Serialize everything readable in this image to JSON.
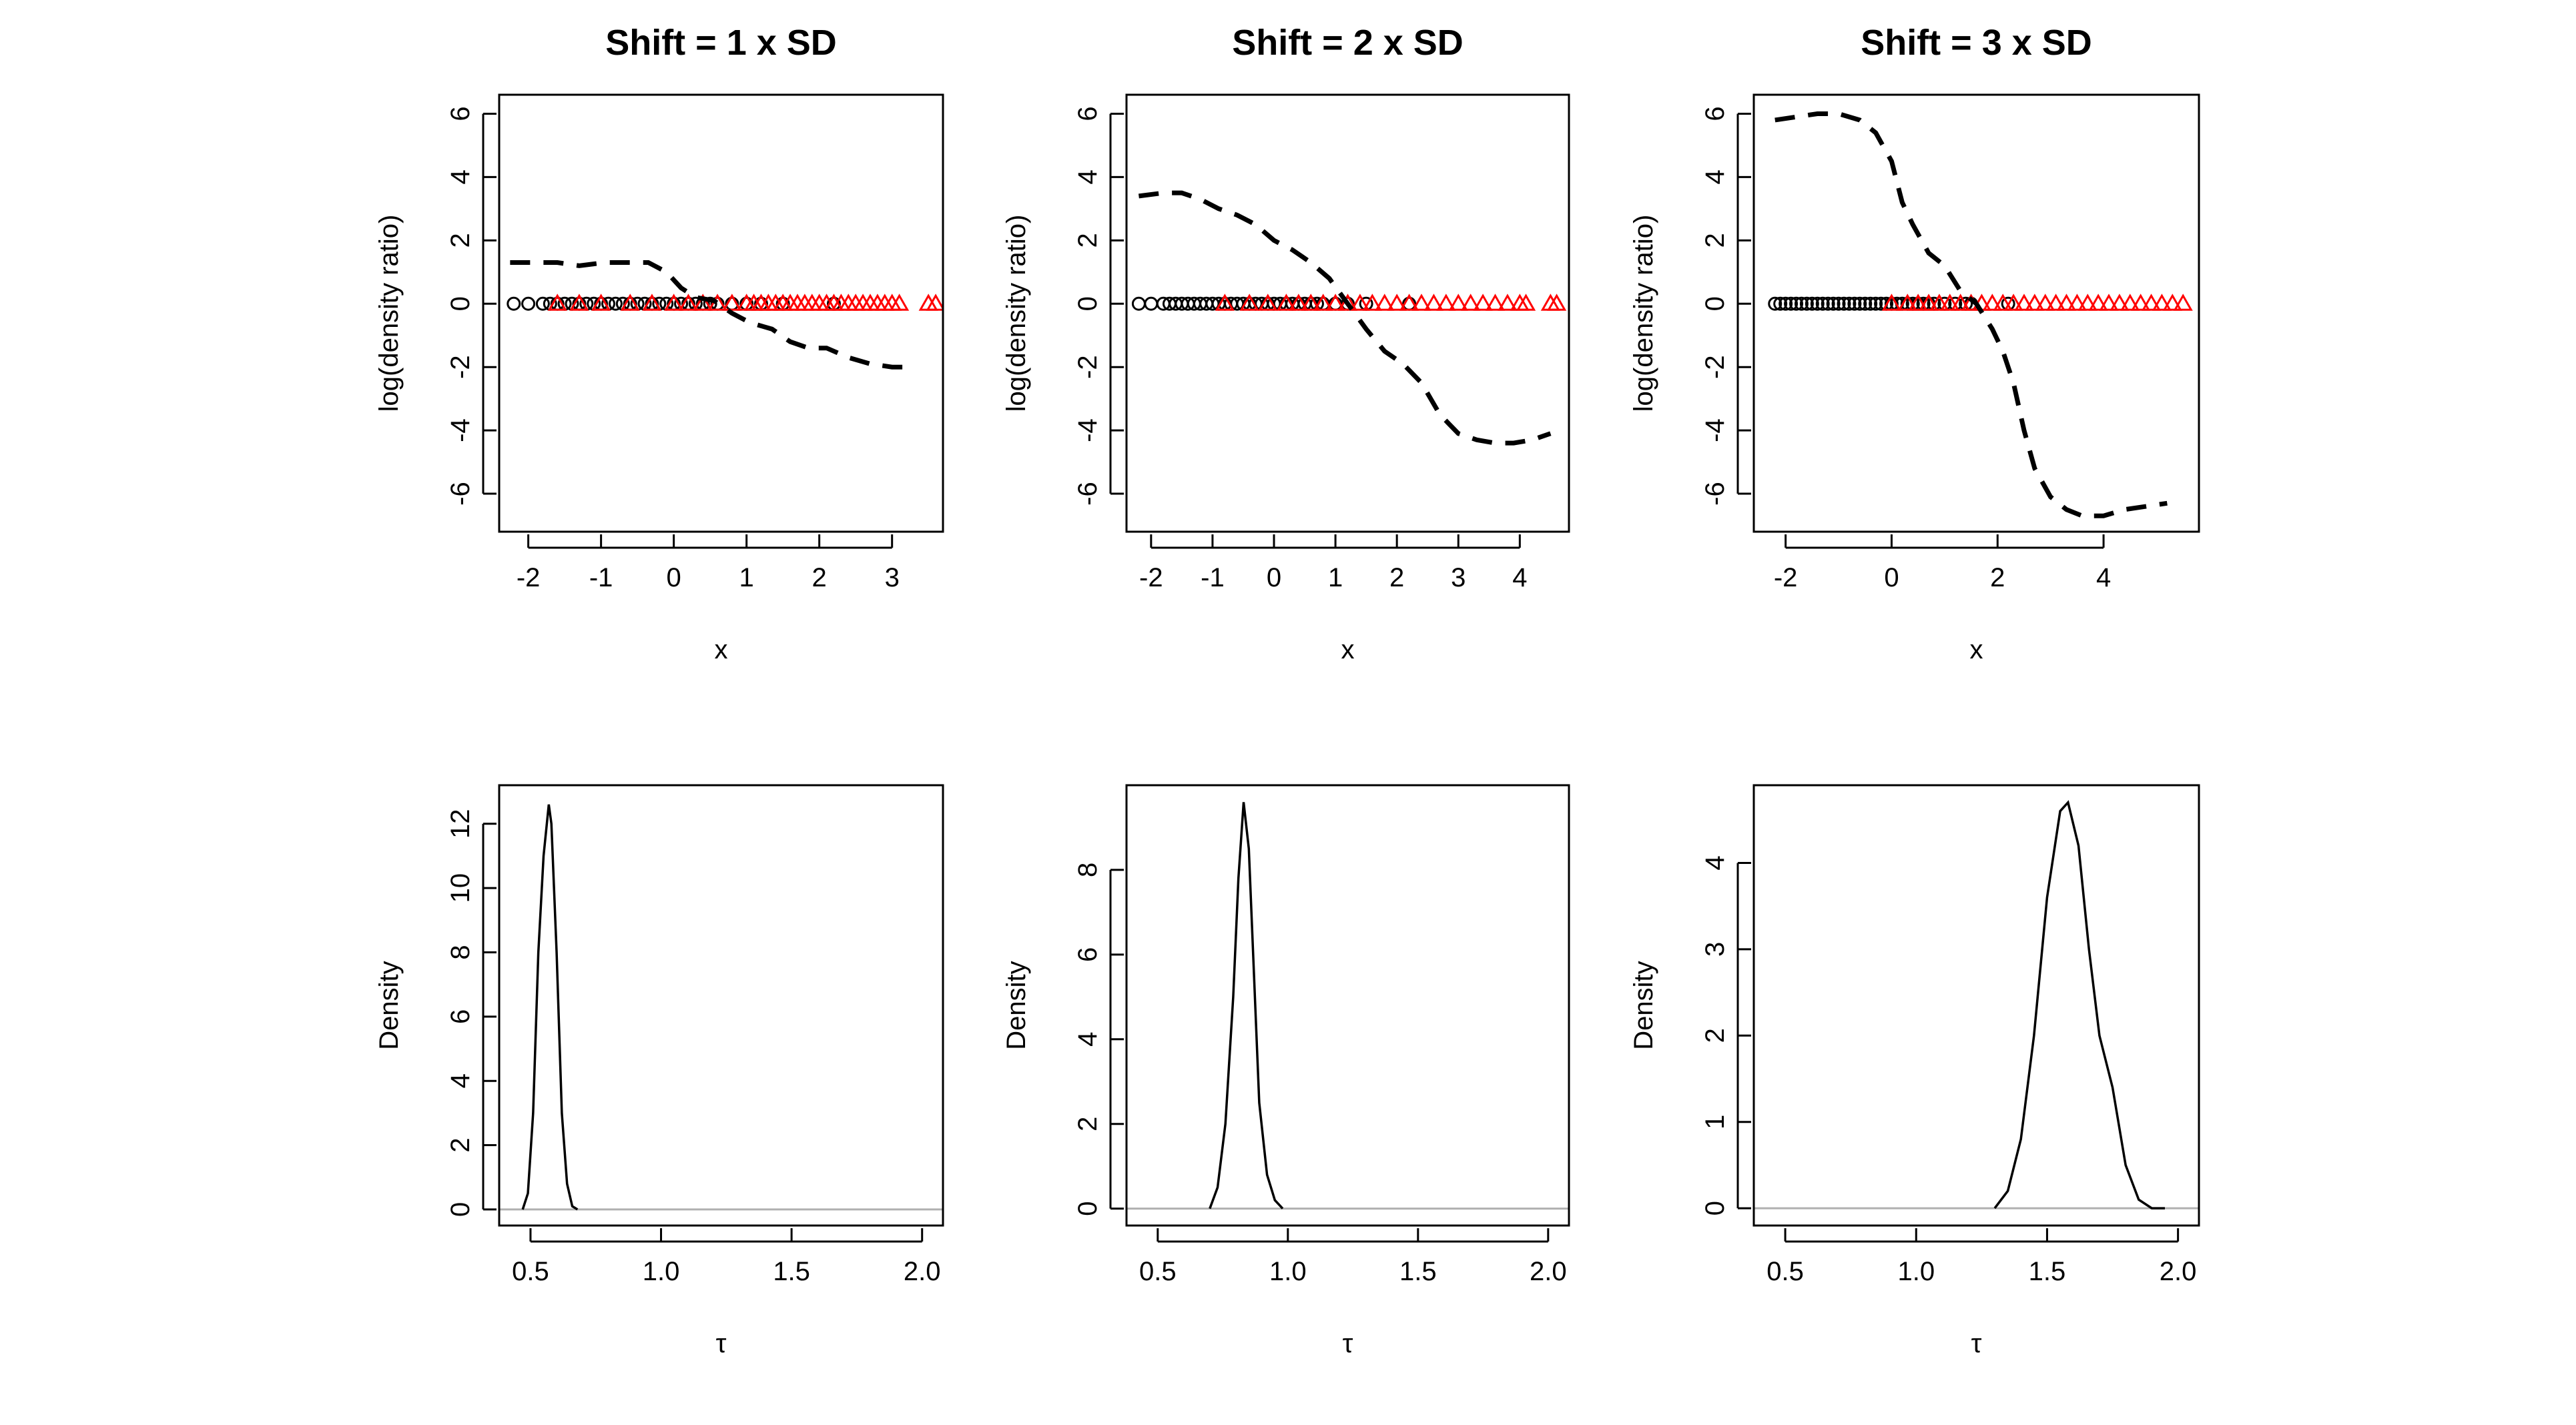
{
  "chart_data": [
    {
      "id": "top1",
      "type": "line",
      "title": "Shift = 1 x SD",
      "xlabel": "x",
      "ylabel": "log(density ratio)",
      "xlim": [
        -2.4,
        3.7
      ],
      "ylim": [
        -7.2,
        6.6
      ],
      "xticks": [
        -2,
        -1,
        0,
        1,
        2,
        3
      ],
      "yticks": [
        -6,
        -4,
        -2,
        0,
        2,
        4,
        6
      ],
      "line_style": "dashed",
      "line": {
        "x": [
          -2.25,
          -1.9,
          -1.6,
          -1.3,
          -0.95,
          -0.6,
          -0.35,
          -0.1,
          0.1,
          0.3,
          0.55,
          0.8,
          1.05,
          1.35,
          1.6,
          1.85,
          2.1,
          2.4,
          2.7,
          3.0,
          3.3
        ],
        "y": [
          1.3,
          1.3,
          1.3,
          1.2,
          1.3,
          1.3,
          1.3,
          1.0,
          0.5,
          0.2,
          0.1,
          -0.3,
          -0.6,
          -0.8,
          -1.2,
          -1.4,
          -1.4,
          -1.7,
          -1.9,
          -2.0,
          -2.0
        ]
      },
      "points_black_circles": [
        -2.2,
        -2.0,
        -1.8,
        -1.7,
        -1.6,
        -1.5,
        -1.4,
        -1.3,
        -1.2,
        -1.1,
        -1.0,
        -0.9,
        -0.8,
        -0.7,
        -0.6,
        -0.5,
        -0.4,
        -0.3,
        -0.2,
        -0.1,
        0.0,
        0.1,
        0.2,
        0.3,
        0.4,
        0.5,
        0.6,
        0.8,
        1.0,
        1.2,
        1.5,
        2.2
      ],
      "points_red_triangles": [
        -1.6,
        -1.3,
        -1.0,
        -0.6,
        -0.3,
        0.0,
        0.2,
        0.4,
        0.6,
        0.8,
        1.0,
        1.1,
        1.2,
        1.3,
        1.4,
        1.5,
        1.6,
        1.7,
        1.8,
        1.9,
        2.0,
        2.1,
        2.2,
        2.3,
        2.4,
        2.5,
        2.6,
        2.7,
        2.8,
        2.9,
        3.0,
        3.1,
        3.5,
        3.6
      ],
      "colors": {
        "black": "#000000",
        "red": "#ff0000"
      }
    },
    {
      "id": "top2",
      "type": "line",
      "title": "Shift = 2 x SD",
      "xlabel": "x",
      "ylabel": "log(density ratio)",
      "xlim": [
        -2.4,
        4.8
      ],
      "ylim": [
        -7.2,
        6.6
      ],
      "xticks": [
        -2,
        -1,
        0,
        1,
        2,
        3,
        4
      ],
      "yticks": [
        -6,
        -4,
        -2,
        0,
        2,
        4,
        6
      ],
      "line_style": "dashed",
      "line": {
        "x": [
          -2.2,
          -1.8,
          -1.5,
          -1.2,
          -0.9,
          -0.6,
          -0.3,
          0.0,
          0.3,
          0.6,
          0.9,
          1.2,
          1.5,
          1.8,
          2.1,
          2.4,
          2.7,
          3.0,
          3.3,
          3.6,
          3.9,
          4.2,
          4.5
        ],
        "y": [
          3.4,
          3.5,
          3.5,
          3.3,
          3.0,
          2.8,
          2.5,
          2.0,
          1.7,
          1.3,
          0.8,
          0.0,
          -0.8,
          -1.5,
          -1.9,
          -2.5,
          -3.5,
          -4.1,
          -4.3,
          -4.4,
          -4.4,
          -4.3,
          -4.1
        ]
      },
      "points_black_circles": [
        -2.2,
        -2.0,
        -1.8,
        -1.7,
        -1.6,
        -1.5,
        -1.4,
        -1.3,
        -1.2,
        -1.1,
        -1.0,
        -0.9,
        -0.8,
        -0.7,
        -0.6,
        -0.5,
        -0.4,
        -0.3,
        -0.2,
        -0.1,
        0.0,
        0.1,
        0.2,
        0.3,
        0.4,
        0.5,
        0.6,
        0.7,
        0.8,
        1.0,
        1.2,
        1.5,
        2.2
      ],
      "points_red_triangles": [
        -0.8,
        -0.4,
        -0.1,
        0.2,
        0.4,
        0.6,
        0.8,
        1.0,
        1.2,
        1.4,
        1.6,
        1.8,
        2.0,
        2.2,
        2.4,
        2.6,
        2.8,
        3.0,
        3.2,
        3.4,
        3.6,
        3.8,
        4.0,
        4.1,
        4.5,
        4.6
      ],
      "colors": {
        "black": "#000000",
        "red": "#ff0000"
      }
    },
    {
      "id": "top3",
      "type": "line",
      "title": "Shift = 3 x SD",
      "xlabel": "x",
      "ylabel": "log(density ratio)",
      "xlim": [
        -2.6,
        5.8
      ],
      "ylim": [
        -7.2,
        6.6
      ],
      "xticks": [
        -2,
        0,
        2,
        4
      ],
      "yticks": [
        -6,
        -4,
        -2,
        0,
        2,
        4,
        6
      ],
      "line_style": "dashed",
      "line": {
        "x": [
          -2.2,
          -1.8,
          -1.4,
          -1.0,
          -0.6,
          -0.3,
          0.0,
          0.2,
          0.4,
          0.7,
          1.0,
          1.3,
          1.6,
          1.9,
          2.1,
          2.3,
          2.5,
          2.7,
          3.0,
          3.3,
          3.6,
          4.0,
          4.4,
          4.8,
          5.2
        ],
        "y": [
          5.8,
          5.9,
          6.0,
          6.0,
          5.8,
          5.4,
          4.5,
          3.2,
          2.5,
          1.6,
          1.2,
          0.4,
          0.0,
          -0.8,
          -1.5,
          -2.5,
          -4.0,
          -5.2,
          -6.1,
          -6.5,
          -6.7,
          -6.7,
          -6.5,
          -6.4,
          -6.3
        ]
      },
      "points_black_circles": [
        -2.2,
        -2.1,
        -2.0,
        -1.9,
        -1.8,
        -1.7,
        -1.6,
        -1.5,
        -1.4,
        -1.3,
        -1.2,
        -1.1,
        -1.0,
        -0.9,
        -0.8,
        -0.7,
        -0.6,
        -0.5,
        -0.4,
        -0.3,
        -0.2,
        -0.1,
        0.0,
        0.1,
        0.2,
        0.3,
        0.4,
        0.5,
        0.6,
        0.7,
        0.8,
        1.0,
        1.2,
        1.4,
        1.5,
        2.2
      ],
      "points_red_triangles": [
        0.0,
        0.3,
        0.5,
        0.7,
        0.9,
        1.1,
        1.3,
        1.5,
        1.7,
        1.9,
        2.1,
        2.3,
        2.5,
        2.7,
        2.9,
        3.1,
        3.3,
        3.5,
        3.7,
        3.9,
        4.1,
        4.3,
        4.5,
        4.7,
        4.9,
        5.1,
        5.3,
        5.5
      ],
      "colors": {
        "black": "#000000",
        "red": "#ff0000"
      }
    },
    {
      "id": "bottom1",
      "type": "line",
      "title": "",
      "xlabel": "τ",
      "ylabel": "Density",
      "xlim": [
        0.38,
        2.08
      ],
      "ylim": [
        -0.5,
        13.2
      ],
      "xticks": [
        0.5,
        1.0,
        1.5,
        2.0
      ],
      "xtick_labels": [
        "0.5",
        "1.0",
        "1.5",
        "2.0"
      ],
      "yticks": [
        0,
        2,
        4,
        6,
        8,
        10,
        12
      ],
      "baseline_color": "#b0b0b0",
      "curve": {
        "x": [
          0.47,
          0.49,
          0.51,
          0.53,
          0.55,
          0.57,
          0.58,
          0.6,
          0.62,
          0.64,
          0.66,
          0.68
        ],
        "y": [
          0.0,
          0.5,
          3.0,
          8.0,
          11.0,
          12.6,
          12.0,
          8.0,
          3.0,
          0.8,
          0.1,
          0.0
        ]
      }
    },
    {
      "id": "bottom2",
      "type": "line",
      "title": "",
      "xlabel": "τ",
      "ylabel": "Density",
      "xlim": [
        0.38,
        2.08
      ],
      "ylim": [
        -0.4,
        10.0
      ],
      "xticks": [
        0.5,
        1.0,
        1.5,
        2.0
      ],
      "xtick_labels": [
        "0.5",
        "1.0",
        "1.5",
        "2.0"
      ],
      "yticks": [
        0,
        2,
        4,
        6,
        8
      ],
      "baseline_color": "#b0b0b0",
      "curve": {
        "x": [
          0.7,
          0.73,
          0.76,
          0.79,
          0.81,
          0.83,
          0.85,
          0.87,
          0.89,
          0.92,
          0.95,
          0.98
        ],
        "y": [
          0.0,
          0.5,
          2.0,
          5.0,
          7.8,
          9.6,
          8.5,
          5.5,
          2.5,
          0.8,
          0.2,
          0.0
        ]
      }
    },
    {
      "id": "bottom3",
      "type": "line",
      "title": "",
      "xlabel": "τ",
      "ylabel": "Density",
      "xlim": [
        0.38,
        2.08
      ],
      "ylim": [
        -0.2,
        4.9
      ],
      "xticks": [
        0.5,
        1.0,
        1.5,
        2.0
      ],
      "xtick_labels": [
        "0.5",
        "1.0",
        "1.5",
        "2.0"
      ],
      "yticks": [
        0,
        1,
        2,
        3,
        4
      ],
      "baseline_color": "#b0b0b0",
      "curve": {
        "x": [
          1.3,
          1.35,
          1.4,
          1.45,
          1.5,
          1.55,
          1.58,
          1.62,
          1.66,
          1.7,
          1.75,
          1.8,
          1.85,
          1.9,
          1.95
        ],
        "y": [
          0.0,
          0.2,
          0.8,
          2.0,
          3.6,
          4.6,
          4.7,
          4.2,
          3.0,
          2.0,
          1.4,
          0.5,
          0.1,
          0.0,
          0.0
        ]
      }
    }
  ]
}
